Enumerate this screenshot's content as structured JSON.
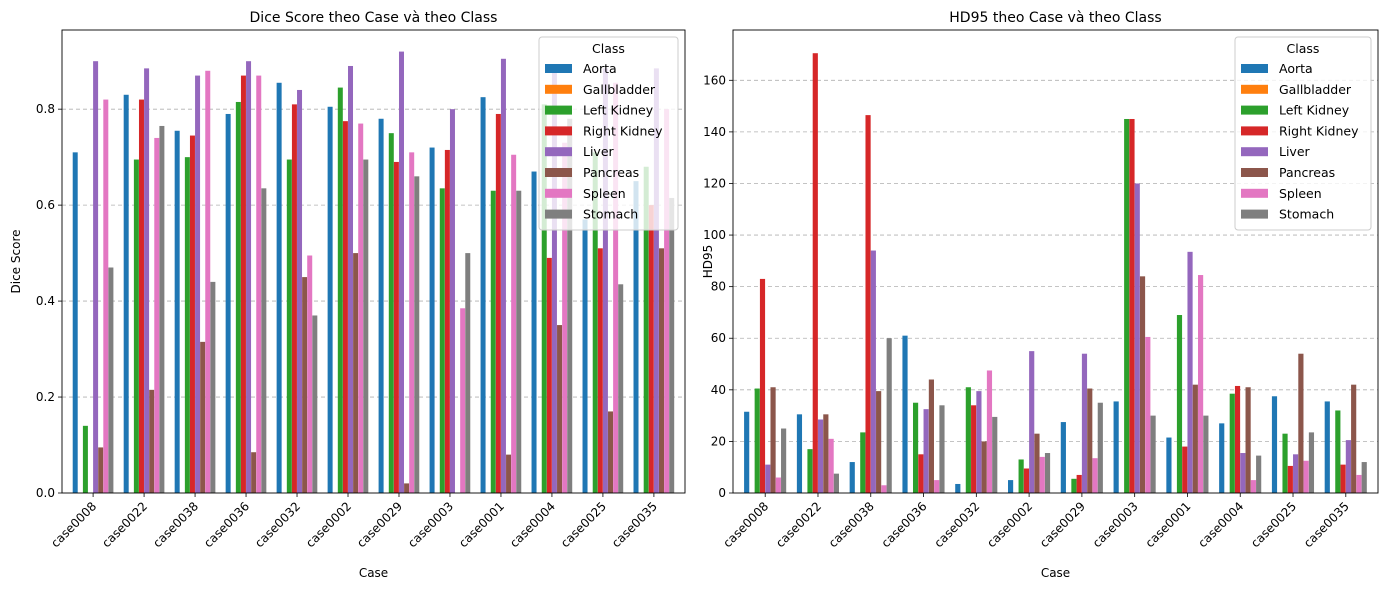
{
  "chart_data": [
    {
      "type": "bar",
      "title": "Dice Score theo Case và theo Class",
      "xlabel": "Case",
      "ylabel": "Dice Score",
      "ylim": [
        0,
        0.965
      ],
      "yticks": [
        "0.0",
        "0.2",
        "0.4",
        "0.6",
        "0.8"
      ],
      "grid": "y-dashed",
      "legend_title": "Class",
      "legend_position": "top-right",
      "categories": [
        "case0008",
        "case0022",
        "case0038",
        "case0036",
        "case0032",
        "case0002",
        "case0029",
        "case0003",
        "case0001",
        "case0004",
        "case0025",
        "case0035"
      ],
      "series": [
        {
          "name": "Aorta",
          "color": "#1f77b4",
          "values": [
            0.71,
            0.83,
            0.755,
            0.79,
            0.855,
            0.805,
            0.78,
            0.72,
            0.825,
            0.67,
            0.57,
            0.65
          ]
        },
        {
          "name": "Gallbladder",
          "color": "#ff7f0e",
          "values": [
            0,
            0,
            0,
            0,
            0,
            0,
            0,
            0,
            0,
            0,
            0,
            0
          ]
        },
        {
          "name": "Left Kidney",
          "color": "#2ca02c",
          "values": [
            0.14,
            0.695,
            0.7,
            0.815,
            0.695,
            0.845,
            0.75,
            0.635,
            0.63,
            0.81,
            0.71,
            0.68
          ]
        },
        {
          "name": "Right Kidney",
          "color": "#d62728",
          "values": [
            0,
            0.82,
            0.745,
            0.87,
            0.81,
            0.775,
            0.69,
            0.715,
            0.79,
            0.49,
            0.51,
            0.6
          ]
        },
        {
          "name": "Liver",
          "color": "#9467bd",
          "values": [
            0.9,
            0.885,
            0.87,
            0.9,
            0.84,
            0.89,
            0.92,
            0.8,
            0.905,
            0.89,
            0.885,
            0.885
          ]
        },
        {
          "name": "Pancreas",
          "color": "#8c564b",
          "values": [
            0.095,
            0.215,
            0.315,
            0.085,
            0.45,
            0.5,
            0.02,
            0,
            0.08,
            0.35,
            0.17,
            0.51
          ]
        },
        {
          "name": "Spleen",
          "color": "#e377c2",
          "values": [
            0.82,
            0.74,
            0.88,
            0.87,
            0.495,
            0.77,
            0.71,
            0.385,
            0.705,
            0.73,
            0.855,
            0.8
          ]
        },
        {
          "name": "Stomach",
          "color": "#7f7f7f",
          "values": [
            0.47,
            0.765,
            0.44,
            0.635,
            0.37,
            0.695,
            0.66,
            0.5,
            0.63,
            0.78,
            0.435,
            0.615
          ]
        }
      ]
    },
    {
      "type": "bar",
      "title": "HD95 theo Case và theo Class",
      "xlabel": "Case",
      "ylabel": "HD95",
      "ylim": [
        0,
        179.5
      ],
      "yticks": [
        "0",
        "20",
        "40",
        "60",
        "80",
        "100",
        "120",
        "140",
        "160"
      ],
      "grid": "y-dashed",
      "legend_title": "Class",
      "legend_position": "top-right",
      "categories": [
        "case0008",
        "case0022",
        "case0038",
        "case0036",
        "case0032",
        "case0002",
        "case0029",
        "case0003",
        "case0001",
        "case0004",
        "case0025",
        "case0035"
      ],
      "series": [
        {
          "name": "Aorta",
          "color": "#1f77b4",
          "values": [
            31.5,
            30.5,
            12,
            61,
            3.5,
            5,
            27.5,
            35.5,
            21.5,
            27,
            37.5,
            35.5
          ]
        },
        {
          "name": "Gallbladder",
          "color": "#ff7f0e",
          "values": [
            0,
            0,
            0,
            0,
            0,
            0,
            0,
            0,
            0,
            0,
            0,
            0
          ]
        },
        {
          "name": "Left Kidney",
          "color": "#2ca02c",
          "values": [
            40.5,
            17,
            23.5,
            35,
            41,
            13,
            5.5,
            145,
            69,
            38.5,
            23,
            32
          ]
        },
        {
          "name": "Right Kidney",
          "color": "#d62728",
          "values": [
            83,
            170.5,
            146.5,
            15,
            34,
            9.5,
            7,
            145,
            18,
            41.5,
            10.5,
            11
          ]
        },
        {
          "name": "Liver",
          "color": "#9467bd",
          "values": [
            11,
            28.5,
            94,
            32.5,
            39.5,
            55,
            54,
            120,
            93.5,
            15.5,
            15,
            20.5
          ]
        },
        {
          "name": "Pancreas",
          "color": "#8c564b",
          "values": [
            41,
            30.5,
            39.5,
            44,
            20,
            23,
            40.5,
            84,
            42,
            41,
            54,
            42
          ]
        },
        {
          "name": "Spleen",
          "color": "#e377c2",
          "values": [
            6,
            21,
            3,
            5,
            47.5,
            14,
            13.5,
            60.5,
            84.5,
            5,
            12.5,
            7
          ]
        },
        {
          "name": "Stomach",
          "color": "#7f7f7f",
          "values": [
            25,
            7.5,
            60,
            34,
            29.5,
            15.5,
            35,
            30,
            30,
            14.5,
            23.5,
            12
          ]
        }
      ]
    }
  ]
}
